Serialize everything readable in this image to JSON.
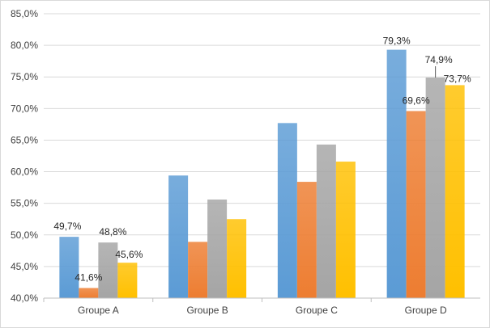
{
  "chart_data": {
    "type": "bar",
    "categories": [
      "Groupe A",
      "Groupe B",
      "Groupe C",
      "Groupe D"
    ],
    "series": [
      {
        "color": "#5b9bd5",
        "values": [
          49.7,
          59.4,
          67.7,
          79.3
        ]
      },
      {
        "color": "#ed7d31",
        "values": [
          41.6,
          48.9,
          58.4,
          69.6
        ]
      },
      {
        "color": "#a5a5a5",
        "values": [
          48.8,
          55.6,
          64.3,
          74.9
        ]
      },
      {
        "color": "#ffc000",
        "values": [
          45.6,
          52.5,
          61.6,
          73.7
        ]
      }
    ],
    "data_labels": [
      [
        "49,7%",
        "41,6%",
        "48,8%",
        "45,6%"
      ],
      [
        "",
        "",
        "",
        ""
      ],
      [
        "",
        "",
        "",
        ""
      ],
      [
        "79,3%",
        "69,6%",
        "74,9%",
        "73,7%"
      ]
    ],
    "y_ticks": [
      "40,0%",
      "45,0%",
      "50,0%",
      "55,0%",
      "60,0%",
      "65,0%",
      "70,0%",
      "75,0%",
      "80,0%",
      "85,0%"
    ],
    "ylim": [
      40,
      85
    ],
    "grid": true,
    "legend": "none",
    "title": "",
    "xlabel": "",
    "ylabel": ""
  }
}
